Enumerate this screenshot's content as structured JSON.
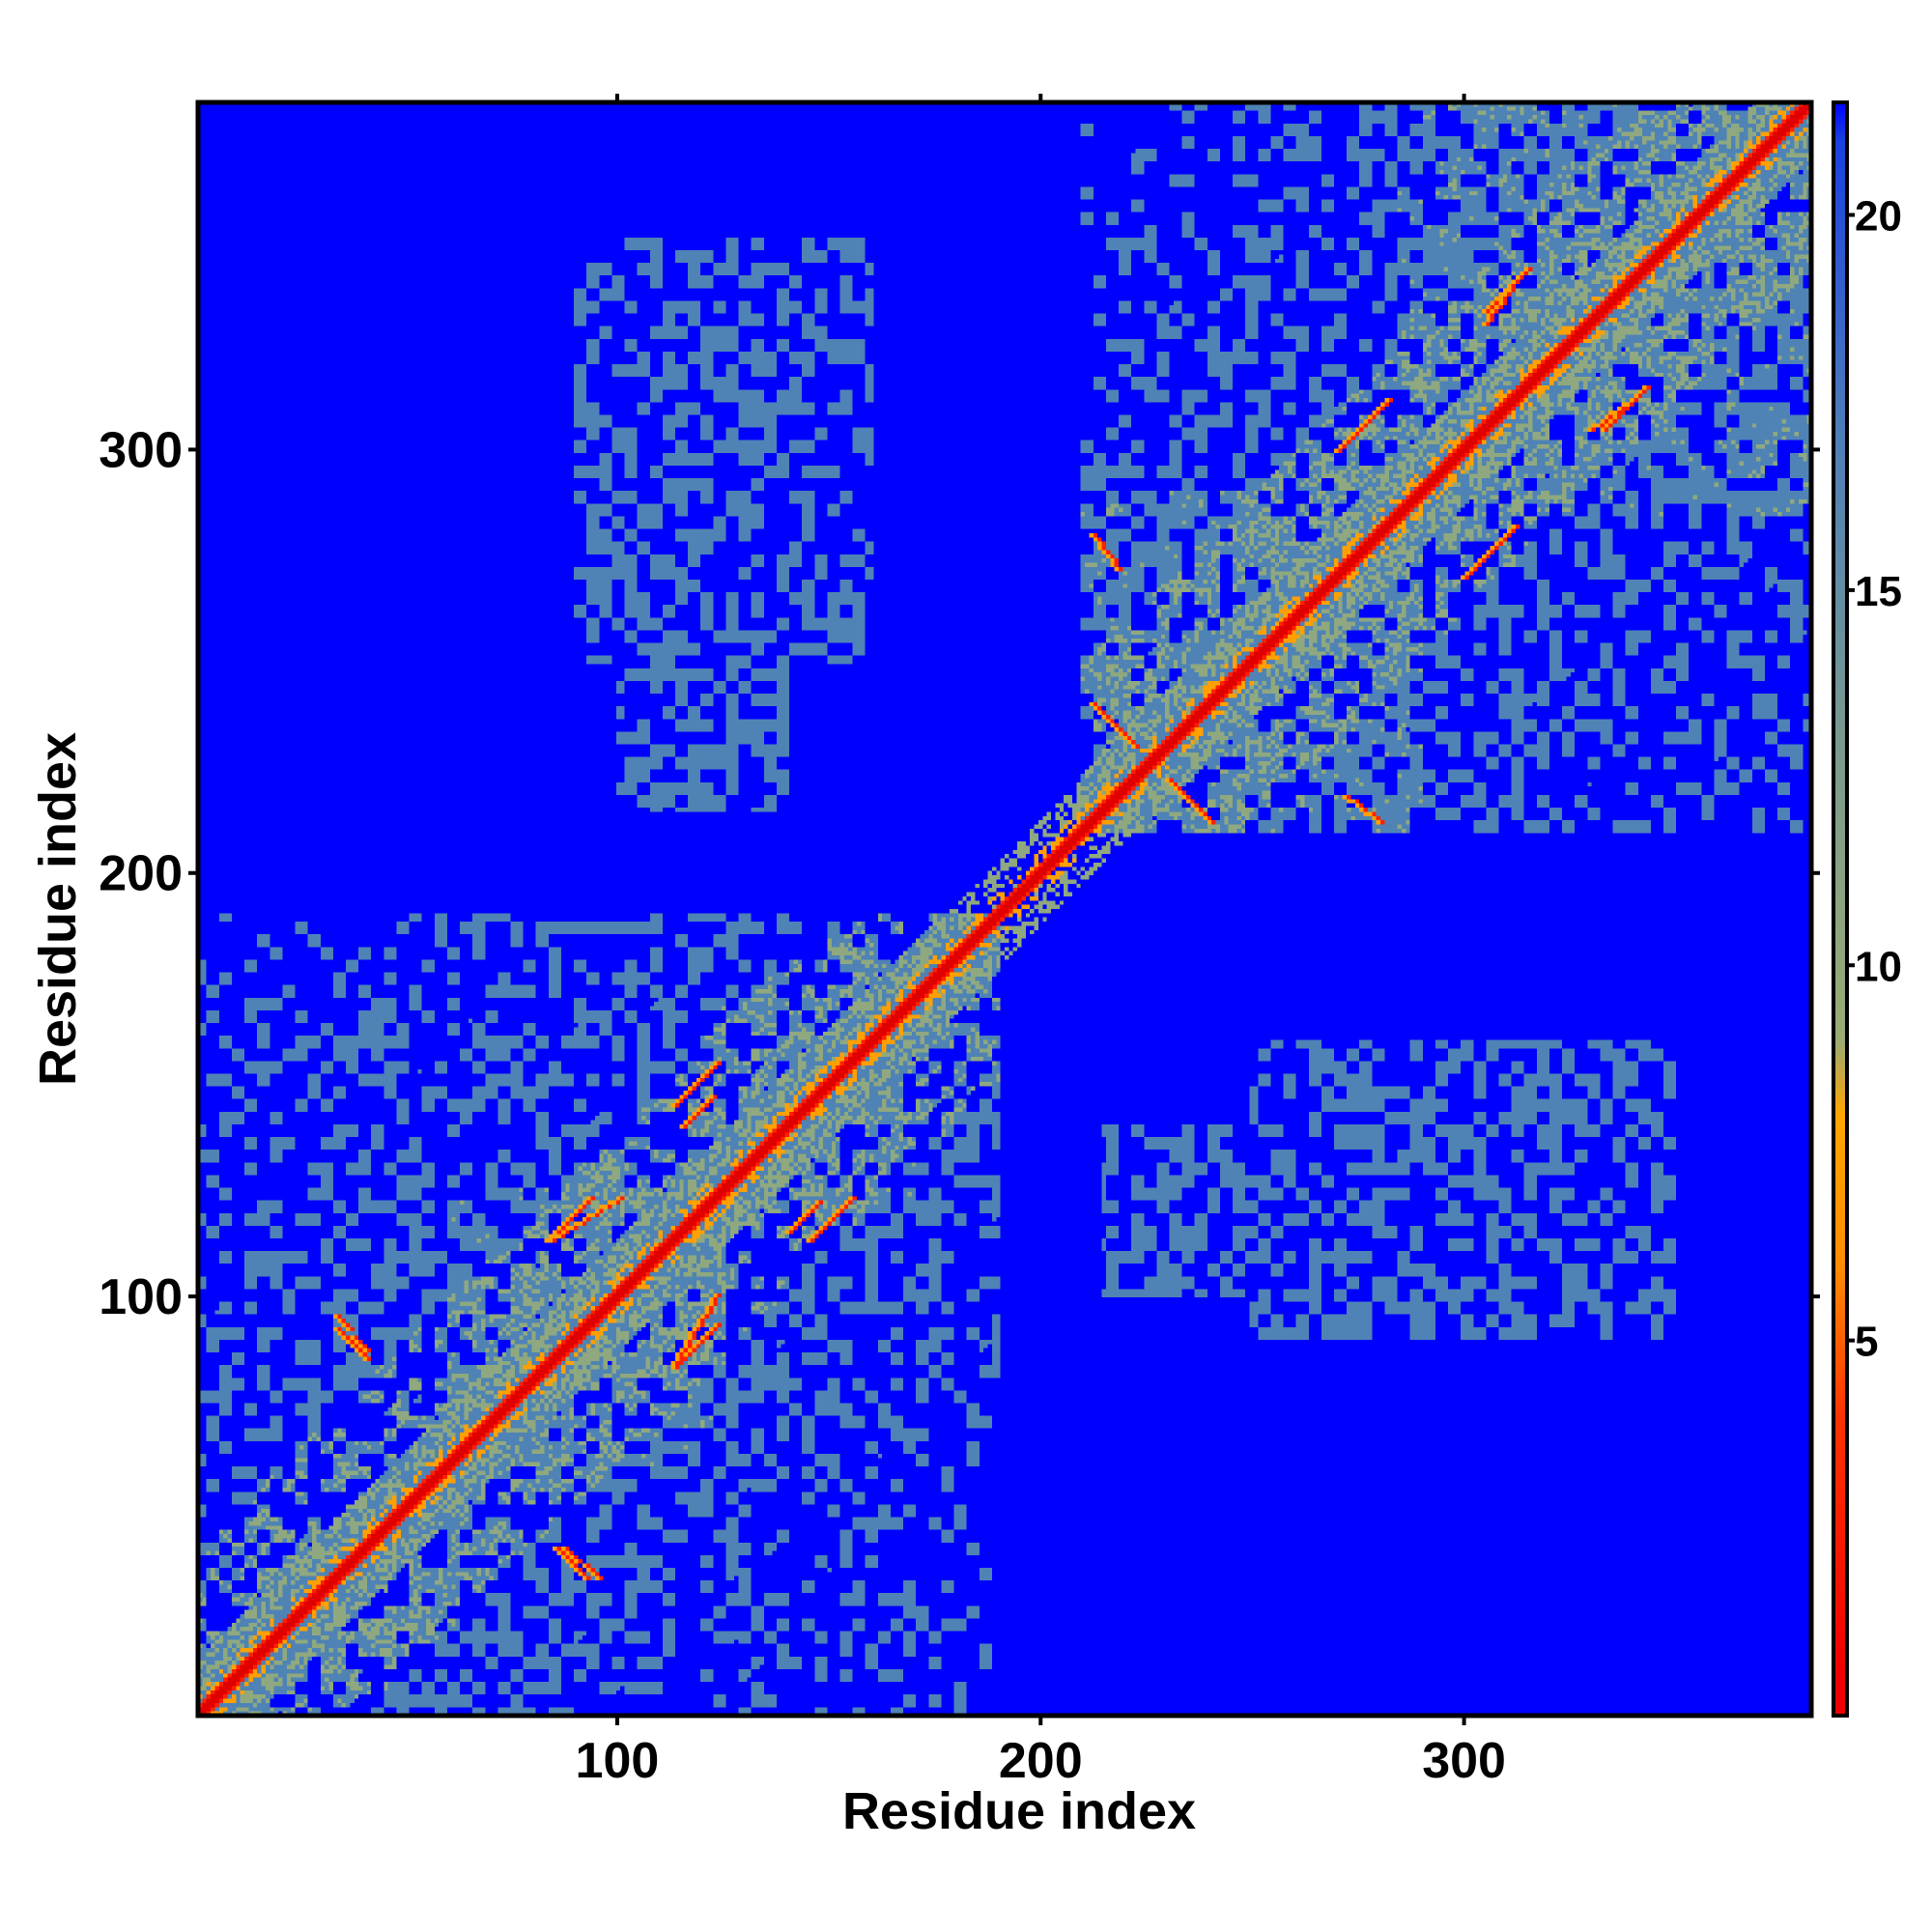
{
  "chart_data": {
    "type": "heatmap",
    "title": "",
    "xlabel": "Residue index",
    "ylabel": "Residue index",
    "n_residues": 382,
    "xlim": [
      1,
      382
    ],
    "ylim": [
      1,
      382
    ],
    "x_ticks": [
      100,
      200,
      300
    ],
    "y_ticks": [
      100,
      200,
      300
    ],
    "colorbar": {
      "ticks": [
        5,
        10,
        15,
        20
      ],
      "range": [
        0,
        21.5
      ],
      "stops": [
        {
          "value": 0.5,
          "color": "#ee0000"
        },
        {
          "value": 4.0,
          "color": "#ff3300"
        },
        {
          "value": 6.0,
          "color": "#ff8c00"
        },
        {
          "value": 8.0,
          "color": "#ffa500"
        },
        {
          "value": 9.0,
          "color": "#9aac74"
        },
        {
          "value": 13.0,
          "color": "#7a9a8f"
        },
        {
          "value": 17.0,
          "color": "#4f7fb8"
        },
        {
          "value": 21.0,
          "color": "#1a40e0"
        },
        {
          "value": 21.5,
          "color": "#0000ff"
        }
      ]
    },
    "colors": {
      "background": "#0000ff",
      "far": "#4f83b5",
      "mid": "#8fa87f",
      "near": "#ffa000",
      "contact": "#ff2000",
      "diagonal": "#e00000"
    },
    "domains": [
      {
        "start": 1,
        "end": 190,
        "strength": 1.0
      },
      {
        "start": 210,
        "end": 382,
        "strength": 1.0
      }
    ],
    "helix_blocks": [
      {
        "start": 15,
        "end": 45,
        "density": 0.55
      },
      {
        "start": 60,
        "end": 125,
        "density": 0.75
      },
      {
        "start": 120,
        "end": 170,
        "density": 0.55
      },
      {
        "start": 210,
        "end": 290,
        "density": 0.75
      },
      {
        "start": 285,
        "end": 382,
        "density": 0.75
      }
    ],
    "inter_domain_blocks": [
      {
        "x": [
          90,
          160
        ],
        "y": [
          250,
          350
        ],
        "density": 0.45
      },
      {
        "x": [
          215,
          340
        ],
        "y": [
          100,
          140
        ],
        "density": 0.45
      }
    ],
    "strand_pairs": [
      {
        "i": [
          33,
          40
        ],
        "j": [
          95,
          87
        ],
        "kind": "anti"
      },
      {
        "i": [
          85,
          92
        ],
        "j": [
          40,
          33
        ],
        "kind": "anti"
      },
      {
        "i": [
          113,
          123
        ],
        "j": [
          145,
          155
        ],
        "kind": "para"
      },
      {
        "i": [
          113,
          123
        ],
        "j": [
          83,
          93
        ],
        "kind": "para"
      },
      {
        "i": [
          140,
          147
        ],
        "j": [
          115,
          122
        ],
        "kind": "para"
      },
      {
        "i": [
          84,
          100
        ],
        "j": [
          113,
          123
        ],
        "kind": "para"
      },
      {
        "i": [
          212,
          220
        ],
        "j": [
          240,
          232
        ],
        "kind": "anti"
      },
      {
        "i": [
          230,
          240
        ],
        "j": [
          222,
          212
        ],
        "kind": "anti"
      },
      {
        "i": [
          212,
          218
        ],
        "j": [
          280,
          272
        ],
        "kind": "anti"
      },
      {
        "i": [
          272,
          280
        ],
        "j": [
          218,
          212
        ],
        "kind": "anti"
      },
      {
        "i": [
          270,
          282
        ],
        "j": [
          300,
          312
        ],
        "kind": "para"
      },
      {
        "i": [
          300,
          312
        ],
        "j": [
          270,
          282
        ],
        "kind": "para"
      },
      {
        "i": [
          305,
          315
        ],
        "j": [
          333,
          343
        ],
        "kind": "para"
      },
      {
        "i": [
          330,
          340
        ],
        "j": [
          305,
          312
        ],
        "kind": "para"
      }
    ]
  }
}
